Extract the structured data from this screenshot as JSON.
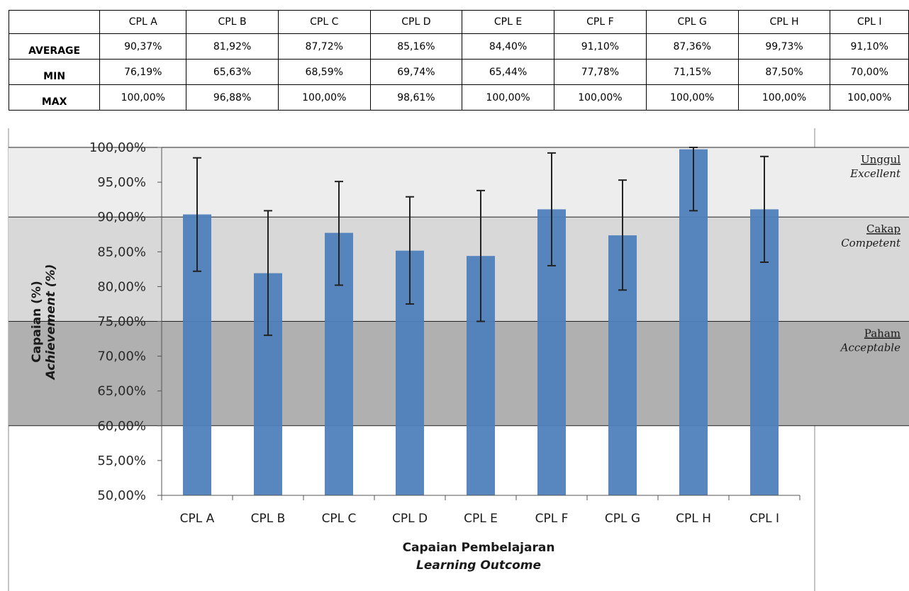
{
  "table": {
    "header": [
      "",
      "CPL A",
      "CPL B",
      "CPL C",
      "CPL D",
      "CPL E",
      "CPL F",
      "CPL G",
      "CPL H",
      "CPL I"
    ],
    "rows": [
      {
        "label": "AVERAGE",
        "cells": [
          "90,37%",
          "81,92%",
          "87,72%",
          "85,16%",
          "84,40%",
          "91,10%",
          "87,36%",
          "99,73%",
          "91,10%"
        ]
      },
      {
        "label": "MIN",
        "cells": [
          "76,19%",
          "65,63%",
          "68,59%",
          "69,74%",
          "65,44%",
          "77,78%",
          "71,15%",
          "87,50%",
          "70,00%"
        ]
      },
      {
        "label": "MAX",
        "cells": [
          "100,00%",
          "96,88%",
          "100,00%",
          "98,61%",
          "100,00%",
          "100,00%",
          "100,00%",
          "100,00%",
          "100,00%"
        ]
      }
    ]
  },
  "chart_data": {
    "type": "bar",
    "categories": [
      "CPL A",
      "CPL B",
      "CPL C",
      "CPL D",
      "CPL E",
      "CPL F",
      "CPL G",
      "CPL H",
      "CPL I"
    ],
    "values": [
      90.37,
      81.92,
      87.72,
      85.16,
      84.4,
      91.1,
      87.36,
      99.73,
      91.1
    ],
    "error_bars": {
      "low": [
        82.2,
        73.0,
        80.2,
        77.5,
        75.0,
        83.0,
        79.5,
        90.9,
        83.5
      ],
      "high": [
        98.5,
        90.9,
        95.1,
        92.9,
        93.8,
        99.2,
        95.3,
        100.0,
        98.7
      ]
    },
    "ylim": [
      50,
      100
    ],
    "yticks": [
      50,
      55,
      60,
      65,
      70,
      75,
      80,
      85,
      90,
      95,
      100
    ],
    "ytick_labels": [
      "50,00%",
      "55,00%",
      "60,00%",
      "65,00%",
      "70,00%",
      "75,00%",
      "80,00%",
      "85,00%",
      "90,00%",
      "95,00%",
      "100,00%"
    ],
    "ylabel": "Capaian (%)",
    "ylabel_en": "Achievement (%)",
    "xlabel": "Capaian Pembelajaran",
    "xlabel_en": "Learning Outcome",
    "bands": [
      {
        "from": 90,
        "to": 100,
        "label": "Unggul",
        "label_en": "Excellent",
        "color": "#ededed"
      },
      {
        "from": 75,
        "to": 90,
        "label": "Cakap",
        "label_en": "Competent",
        "color": "#d8d8d8"
      },
      {
        "from": 60,
        "to": 75,
        "label": "Paham",
        "label_en": "Acceptable",
        "color": "#b0b0b0"
      }
    ],
    "bar_color": "#4f81bd",
    "grid": false,
    "legend": "none"
  }
}
